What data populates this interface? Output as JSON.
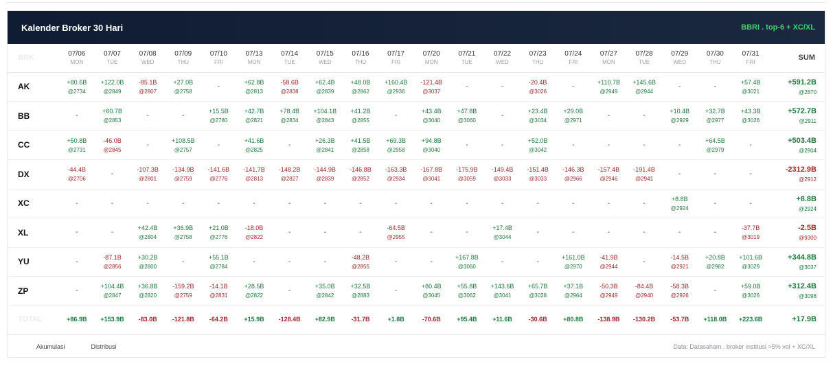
{
  "header": {
    "title": "Kalender Broker 30 Hari",
    "subtitle": "BBRI . top-6 + XC/XL"
  },
  "columns": {
    "broker": "BRK",
    "sum": "SUM",
    "total": "TOTAL"
  },
  "days": [
    {
      "date": "07/06",
      "dow": "MON"
    },
    {
      "date": "07/07",
      "dow": "TUE"
    },
    {
      "date": "07/08",
      "dow": "WED"
    },
    {
      "date": "07/09",
      "dow": "THU"
    },
    {
      "date": "07/10",
      "dow": "FRI"
    },
    {
      "date": "07/13",
      "dow": "MON"
    },
    {
      "date": "07/14",
      "dow": "TUE"
    },
    {
      "date": "07/15",
      "dow": "WED"
    },
    {
      "date": "07/16",
      "dow": "THU"
    },
    {
      "date": "07/17",
      "dow": "FRI"
    },
    {
      "date": "07/20",
      "dow": "MON"
    },
    {
      "date": "07/21",
      "dow": "TUE"
    },
    {
      "date": "07/22",
      "dow": "WED"
    },
    {
      "date": "07/23",
      "dow": "THU"
    },
    {
      "date": "07/24",
      "dow": "FRI"
    },
    {
      "date": "07/27",
      "dow": "MON"
    },
    {
      "date": "07/28",
      "dow": "TUE"
    },
    {
      "date": "07/29",
      "dow": "WED"
    },
    {
      "date": "07/30",
      "dow": "THU"
    },
    {
      "date": "07/31",
      "dow": "FRI"
    }
  ],
  "rows": [
    {
      "code": "AK",
      "cells": [
        {
          "v": "+80.6B",
          "p": "@2734"
        },
        {
          "v": "+122.0B",
          "p": "@2849"
        },
        {
          "v": "-85.1B",
          "p": "@2807"
        },
        {
          "v": "+27.0B",
          "p": "@2758"
        },
        {
          "v": "-",
          "p": ""
        },
        {
          "v": "+62.8B",
          "p": "@2813"
        },
        {
          "v": "-58.6B",
          "p": "@2838"
        },
        {
          "v": "+62.4B",
          "p": "@2839"
        },
        {
          "v": "+48.0B",
          "p": "@2862"
        },
        {
          "v": "+160.4B",
          "p": "@2936"
        },
        {
          "v": "-121.4B",
          "p": "@3037"
        },
        {
          "v": "-",
          "p": ""
        },
        {
          "v": "-",
          "p": ""
        },
        {
          "v": "-20.4B",
          "p": "@3026"
        },
        {
          "v": "-",
          "p": ""
        },
        {
          "v": "+110.7B",
          "p": "@2949"
        },
        {
          "v": "+145.6B",
          "p": "@2944"
        },
        {
          "v": "-",
          "p": ""
        },
        {
          "v": "-",
          "p": ""
        },
        {
          "v": "+57.4B",
          "p": "@3021"
        }
      ],
      "sum": {
        "v": "+591.2B",
        "p": "@2870"
      }
    },
    {
      "code": "BB",
      "cells": [
        {
          "v": "-",
          "p": ""
        },
        {
          "v": "+60.7B",
          "p": "@2853"
        },
        {
          "v": "-",
          "p": ""
        },
        {
          "v": "-",
          "p": ""
        },
        {
          "v": "+15.5B",
          "p": "@2780"
        },
        {
          "v": "+42.7B",
          "p": "@2821"
        },
        {
          "v": "+78.4B",
          "p": "@2834"
        },
        {
          "v": "+104.1B",
          "p": "@2843"
        },
        {
          "v": "+41.2B",
          "p": "@2855"
        },
        {
          "v": "-",
          "p": ""
        },
        {
          "v": "+43.4B",
          "p": "@3040"
        },
        {
          "v": "+47.8B",
          "p": "@3060"
        },
        {
          "v": "-",
          "p": ""
        },
        {
          "v": "+23.4B",
          "p": "@3034"
        },
        {
          "v": "+29.0B",
          "p": "@2971"
        },
        {
          "v": "-",
          "p": ""
        },
        {
          "v": "-",
          "p": ""
        },
        {
          "v": "+10.4B",
          "p": "@2929"
        },
        {
          "v": "+32.7B",
          "p": "@2977"
        },
        {
          "v": "+43.3B",
          "p": "@3026"
        }
      ],
      "sum": {
        "v": "+572.7B",
        "p": "@2911"
      }
    },
    {
      "code": "CC",
      "cells": [
        {
          "v": "+50.8B",
          "p": "@2731"
        },
        {
          "v": "-46.0B",
          "p": "@2845"
        },
        {
          "v": "-",
          "p": ""
        },
        {
          "v": "+108.5B",
          "p": "@2757"
        },
        {
          "v": "-",
          "p": ""
        },
        {
          "v": "+41.6B",
          "p": "@2825"
        },
        {
          "v": "-",
          "p": ""
        },
        {
          "v": "+26.3B",
          "p": "@2841"
        },
        {
          "v": "+41.5B",
          "p": "@2858"
        },
        {
          "v": "+69.3B",
          "p": "@2958"
        },
        {
          "v": "+94.8B",
          "p": "@3040"
        },
        {
          "v": "-",
          "p": ""
        },
        {
          "v": "-",
          "p": ""
        },
        {
          "v": "+52.0B",
          "p": "@3042"
        },
        {
          "v": "-",
          "p": ""
        },
        {
          "v": "-",
          "p": ""
        },
        {
          "v": "-",
          "p": ""
        },
        {
          "v": "-",
          "p": ""
        },
        {
          "v": "+64.5B",
          "p": "@2979"
        },
        {
          "v": "-",
          "p": ""
        }
      ],
      "sum": {
        "v": "+503.4B",
        "p": "@2904"
      }
    },
    {
      "code": "DX",
      "cells": [
        {
          "v": "-44.4B",
          "p": "@2706"
        },
        {
          "v": "-",
          "p": ""
        },
        {
          "v": "-107.3B",
          "p": "@2801"
        },
        {
          "v": "-134.9B",
          "p": "@2759"
        },
        {
          "v": "-141.6B",
          "p": "@2776"
        },
        {
          "v": "-141.7B",
          "p": "@2813"
        },
        {
          "v": "-148.2B",
          "p": "@2827"
        },
        {
          "v": "-144.9B",
          "p": "@2839"
        },
        {
          "v": "-146.8B",
          "p": "@2852"
        },
        {
          "v": "-163.3B",
          "p": "@2934"
        },
        {
          "v": "-167.8B",
          "p": "@3041"
        },
        {
          "v": "-175.9B",
          "p": "@3059"
        },
        {
          "v": "-149.4B",
          "p": "@3033"
        },
        {
          "v": "-151.4B",
          "p": "@3033"
        },
        {
          "v": "-146.3B",
          "p": "@2966"
        },
        {
          "v": "-157.4B",
          "p": "@2946"
        },
        {
          "v": "-191.4B",
          "p": "@2941"
        },
        {
          "v": "-",
          "p": ""
        },
        {
          "v": "-",
          "p": ""
        },
        {
          "v": "-",
          "p": ""
        }
      ],
      "sum": {
        "v": "-2312.9B",
        "p": "@2912"
      }
    },
    {
      "code": "XC",
      "cells": [
        {
          "v": "-",
          "p": ""
        },
        {
          "v": "-",
          "p": ""
        },
        {
          "v": "-",
          "p": ""
        },
        {
          "v": "-",
          "p": ""
        },
        {
          "v": "-",
          "p": ""
        },
        {
          "v": "-",
          "p": ""
        },
        {
          "v": "-",
          "p": ""
        },
        {
          "v": "-",
          "p": ""
        },
        {
          "v": "-",
          "p": ""
        },
        {
          "v": "-",
          "p": ""
        },
        {
          "v": "-",
          "p": ""
        },
        {
          "v": "-",
          "p": ""
        },
        {
          "v": "-",
          "p": ""
        },
        {
          "v": "-",
          "p": ""
        },
        {
          "v": "-",
          "p": ""
        },
        {
          "v": "-",
          "p": ""
        },
        {
          "v": "-",
          "p": ""
        },
        {
          "v": "+8.8B",
          "p": "@2924"
        },
        {
          "v": "-",
          "p": ""
        },
        {
          "v": "-",
          "p": ""
        }
      ],
      "sum": {
        "v": "+8.8B",
        "p": "@2924"
      }
    },
    {
      "code": "XL",
      "cells": [
        {
          "v": "-",
          "p": ""
        },
        {
          "v": "-",
          "p": ""
        },
        {
          "v": "+42.4B",
          "p": "@2804"
        },
        {
          "v": "+36.9B",
          "p": "@2758"
        },
        {
          "v": "+21.0B",
          "p": "@2776"
        },
        {
          "v": "-18.0B",
          "p": "@2822"
        },
        {
          "v": "-",
          "p": ""
        },
        {
          "v": "-",
          "p": ""
        },
        {
          "v": "-",
          "p": ""
        },
        {
          "v": "-64.5B",
          "p": "@2955"
        },
        {
          "v": "-",
          "p": ""
        },
        {
          "v": "-",
          "p": ""
        },
        {
          "v": "+17.4B",
          "p": "@3044"
        },
        {
          "v": "-",
          "p": ""
        },
        {
          "v": "-",
          "p": ""
        },
        {
          "v": "-",
          "p": ""
        },
        {
          "v": "-",
          "p": ""
        },
        {
          "v": "-",
          "p": ""
        },
        {
          "v": "-",
          "p": ""
        },
        {
          "v": "-37.7B",
          "p": "@3019"
        }
      ],
      "sum": {
        "v": "-2.5B",
        "p": "@9300"
      }
    },
    {
      "code": "YU",
      "cells": [
        {
          "v": "-",
          "p": ""
        },
        {
          "v": "-87.1B",
          "p": "@2856"
        },
        {
          "v": "+30.2B",
          "p": "@2800"
        },
        {
          "v": "-",
          "p": ""
        },
        {
          "v": "+55.1B",
          "p": "@2784"
        },
        {
          "v": "-",
          "p": ""
        },
        {
          "v": "-",
          "p": ""
        },
        {
          "v": "-",
          "p": ""
        },
        {
          "v": "-48.2B",
          "p": "@2855"
        },
        {
          "v": "-",
          "p": ""
        },
        {
          "v": "-",
          "p": ""
        },
        {
          "v": "+167.8B",
          "p": "@3060"
        },
        {
          "v": "-",
          "p": ""
        },
        {
          "v": "-",
          "p": ""
        },
        {
          "v": "+161.0B",
          "p": "@2970"
        },
        {
          "v": "-41.9B",
          "p": "@2944"
        },
        {
          "v": "-",
          "p": ""
        },
        {
          "v": "-14.5B",
          "p": "@2921"
        },
        {
          "v": "+20.8B",
          "p": "@2982"
        },
        {
          "v": "+101.6B",
          "p": "@3029"
        }
      ],
      "sum": {
        "v": "+344.8B",
        "p": "@3037"
      }
    },
    {
      "code": "ZP",
      "cells": [
        {
          "v": "-",
          "p": ""
        },
        {
          "v": "+104.4B",
          "p": "@2847"
        },
        {
          "v": "+36.8B",
          "p": "@2820"
        },
        {
          "v": "-159.2B",
          "p": "@2759"
        },
        {
          "v": "-14.1B",
          "p": "@2831"
        },
        {
          "v": "+28.5B",
          "p": "@2822"
        },
        {
          "v": "-",
          "p": ""
        },
        {
          "v": "+35.0B",
          "p": "@2842"
        },
        {
          "v": "+32.5B",
          "p": "@2883"
        },
        {
          "v": "-",
          "p": ""
        },
        {
          "v": "+80.4B",
          "p": "@3045"
        },
        {
          "v": "+55.8B",
          "p": "@3062"
        },
        {
          "v": "+143.6B",
          "p": "@3041"
        },
        {
          "v": "+65.7B",
          "p": "@3028"
        },
        {
          "v": "+37.1B",
          "p": "@2964"
        },
        {
          "v": "-50.3B",
          "p": "@2949"
        },
        {
          "v": "-84.4B",
          "p": "@2940"
        },
        {
          "v": "-58.3B",
          "p": "@2926"
        },
        {
          "v": "-",
          "p": ""
        },
        {
          "v": "+59.0B",
          "p": "@3026"
        }
      ],
      "sum": {
        "v": "+312.4B",
        "p": "@3098"
      }
    }
  ],
  "totals": [
    "+86.9B",
    "+153.9B",
    "-83.0B",
    "-121.8B",
    "-64.2B",
    "+15.9B",
    "-128.4B",
    "+82.9B",
    "-31.7B",
    "+1.8B",
    "-70.6B",
    "+95.4B",
    "+11.6B",
    "-30.6B",
    "+80.8B",
    "-138.9B",
    "-130.2B",
    "-53.7B",
    "+118.0B",
    "+223.6B"
  ],
  "total_sum": "+17.9B",
  "footer": {
    "legend": [
      "Akumulasi",
      "Distribusi"
    ],
    "note": "Data: Datasaham . broker institusi >5% vol + XC/XL"
  }
}
